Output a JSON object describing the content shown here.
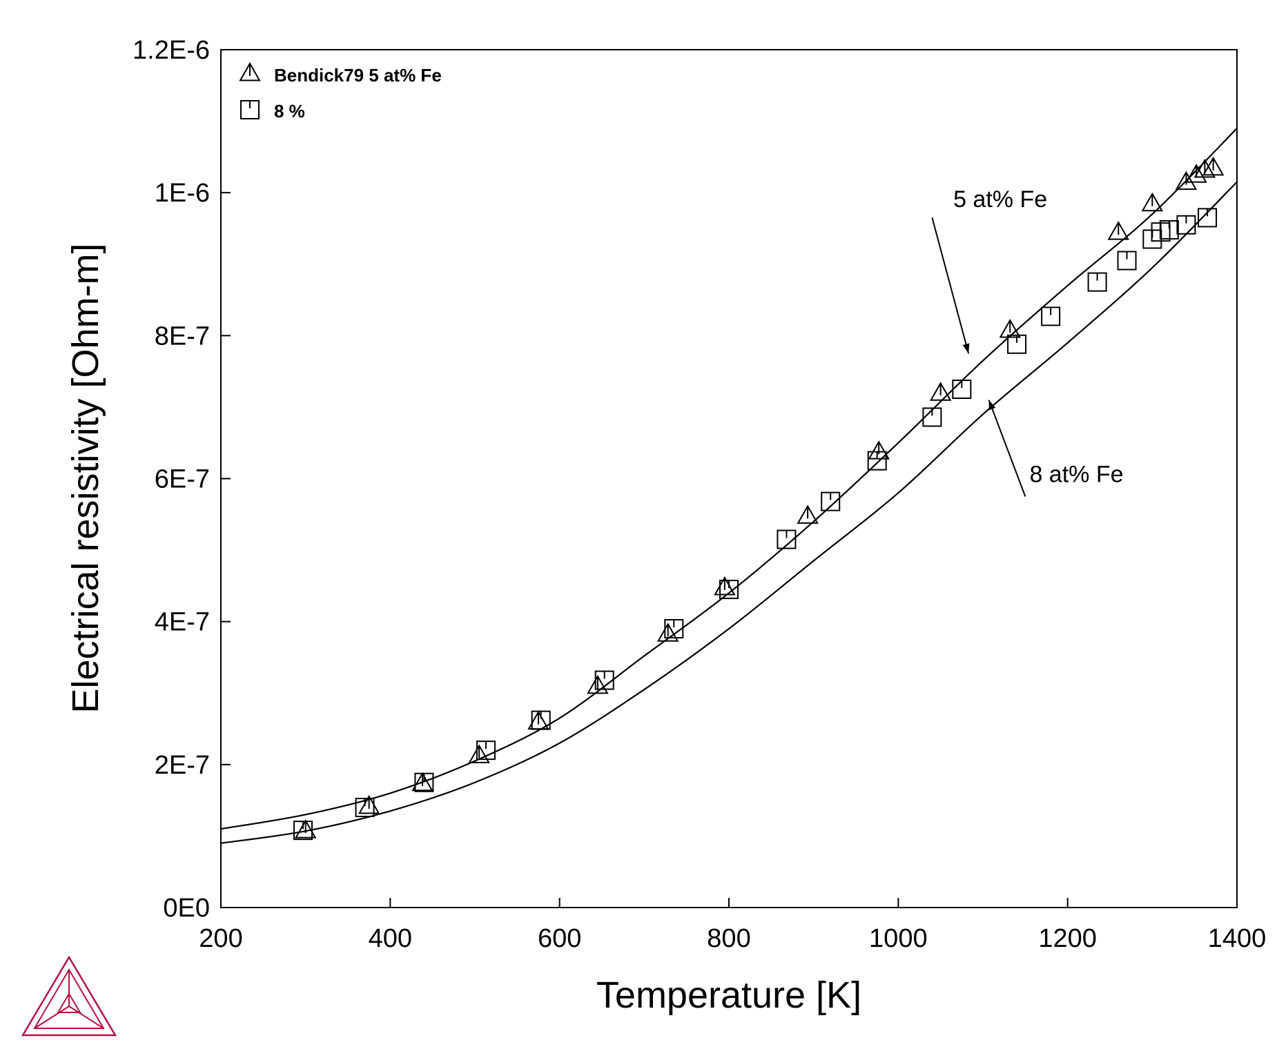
{
  "chart_data": {
    "type": "line",
    "xlabel": "Temperature [K]",
    "ylabel": "Electrical resistivity [Ohm-m]",
    "xlim": [
      200,
      1400
    ],
    "ylim": [
      0,
      1.2e-06
    ],
    "x_ticks": [
      {
        "value": 200,
        "label": "200"
      },
      {
        "value": 400,
        "label": "400"
      },
      {
        "value": 600,
        "label": "600"
      },
      {
        "value": 800,
        "label": "800"
      },
      {
        "value": 1000,
        "label": "1000"
      },
      {
        "value": 1200,
        "label": "1200"
      },
      {
        "value": 1400,
        "label": "1400"
      }
    ],
    "y_ticks": [
      {
        "value": 0,
        "label": "0E0"
      },
      {
        "value": 2e-07,
        "label": "2E-7"
      },
      {
        "value": 4e-07,
        "label": "4E-7"
      },
      {
        "value": 6e-07,
        "label": "6E-7"
      },
      {
        "value": 8e-07,
        "label": "8E-7"
      },
      {
        "value": 1e-06,
        "label": "1E-6"
      },
      {
        "value": 1.2e-06,
        "label": "1.2E-6"
      }
    ],
    "grid": false,
    "legend_position": "top-left",
    "legend": [
      {
        "label": "Bendick79 5 at% Fe",
        "marker": "triangle"
      },
      {
        "label": "8 %",
        "marker": "square"
      }
    ],
    "series": [
      {
        "kind": "line",
        "x": [
          200,
          300,
          400,
          500,
          600,
          700,
          800,
          900,
          1000,
          1100,
          1200,
          1300,
          1400
        ],
        "y": [
          1.1e-07,
          1.3e-07,
          1.6e-07,
          2.05e-07,
          2.65e-07,
          3.52e-07,
          4.4e-07,
          5.4e-07,
          6.5e-07,
          7.65e-07,
          8.7e-07,
          9.7e-07,
          1.09e-06
        ]
      },
      {
        "kind": "line",
        "x": [
          200,
          300,
          400,
          500,
          600,
          700,
          800,
          900,
          1000,
          1100,
          1200,
          1300,
          1400
        ],
        "y": [
          9e-08,
          1.07e-07,
          1.35e-07,
          1.75e-07,
          2.3e-07,
          3.05e-07,
          3.9e-07,
          4.85e-07,
          5.8e-07,
          6.9e-07,
          7.9e-07,
          8.95e-07,
          1.015e-06
        ]
      },
      {
        "kind": "scatter",
        "marker": "triangle",
        "name": "Bendick79 5 at% Fe",
        "x": [
          300,
          375,
          438,
          505,
          575,
          645,
          728,
          795,
          893,
          977,
          1050,
          1132,
          1260,
          1300,
          1340,
          1352,
          1362,
          1372
        ],
        "y": [
          1.08e-07,
          1.42e-07,
          1.74e-07,
          2.13e-07,
          2.6e-07,
          3.1e-07,
          3.83e-07,
          4.48e-07,
          5.48e-07,
          6.38e-07,
          7.2e-07,
          8.08e-07,
          9.45e-07,
          9.85e-07,
          1.015e-06,
          1.025e-06,
          1.032e-06,
          1.035e-06
        ]
      },
      {
        "kind": "scatter",
        "marker": "square",
        "name": "8 %",
        "x": [
          297,
          370,
          440,
          513,
          578,
          653,
          735,
          800,
          868,
          920,
          975,
          1040,
          1075,
          1140,
          1180,
          1235,
          1270,
          1300,
          1310,
          1320,
          1340,
          1365
        ],
        "y": [
          1.08e-07,
          1.4e-07,
          1.75e-07,
          2.2e-07,
          2.62e-07,
          3.18e-07,
          3.9e-07,
          4.45e-07,
          5.15e-07,
          5.68e-07,
          6.25e-07,
          6.86e-07,
          7.25e-07,
          7.88e-07,
          8.27e-07,
          8.75e-07,
          9.05e-07,
          9.35e-07,
          9.45e-07,
          9.48e-07,
          9.55e-07,
          9.65e-07
        ]
      }
    ],
    "annotations": [
      {
        "text": "5 at% Fe",
        "text_x": 1065,
        "text_y": 9.8e-07,
        "arrow_from": [
          1040,
          9.65e-07
        ],
        "arrow_to": [
          1083,
          7.75e-07
        ]
      },
      {
        "text": "8 at% Fe",
        "text_x": 1155,
        "text_y": 5.95e-07,
        "arrow_from": [
          1150,
          5.75e-07
        ],
        "arrow_to": [
          1107,
          7.1e-07
        ]
      }
    ]
  },
  "logo": {
    "name": "thermo-calc-logo",
    "color": "#b5123e"
  }
}
